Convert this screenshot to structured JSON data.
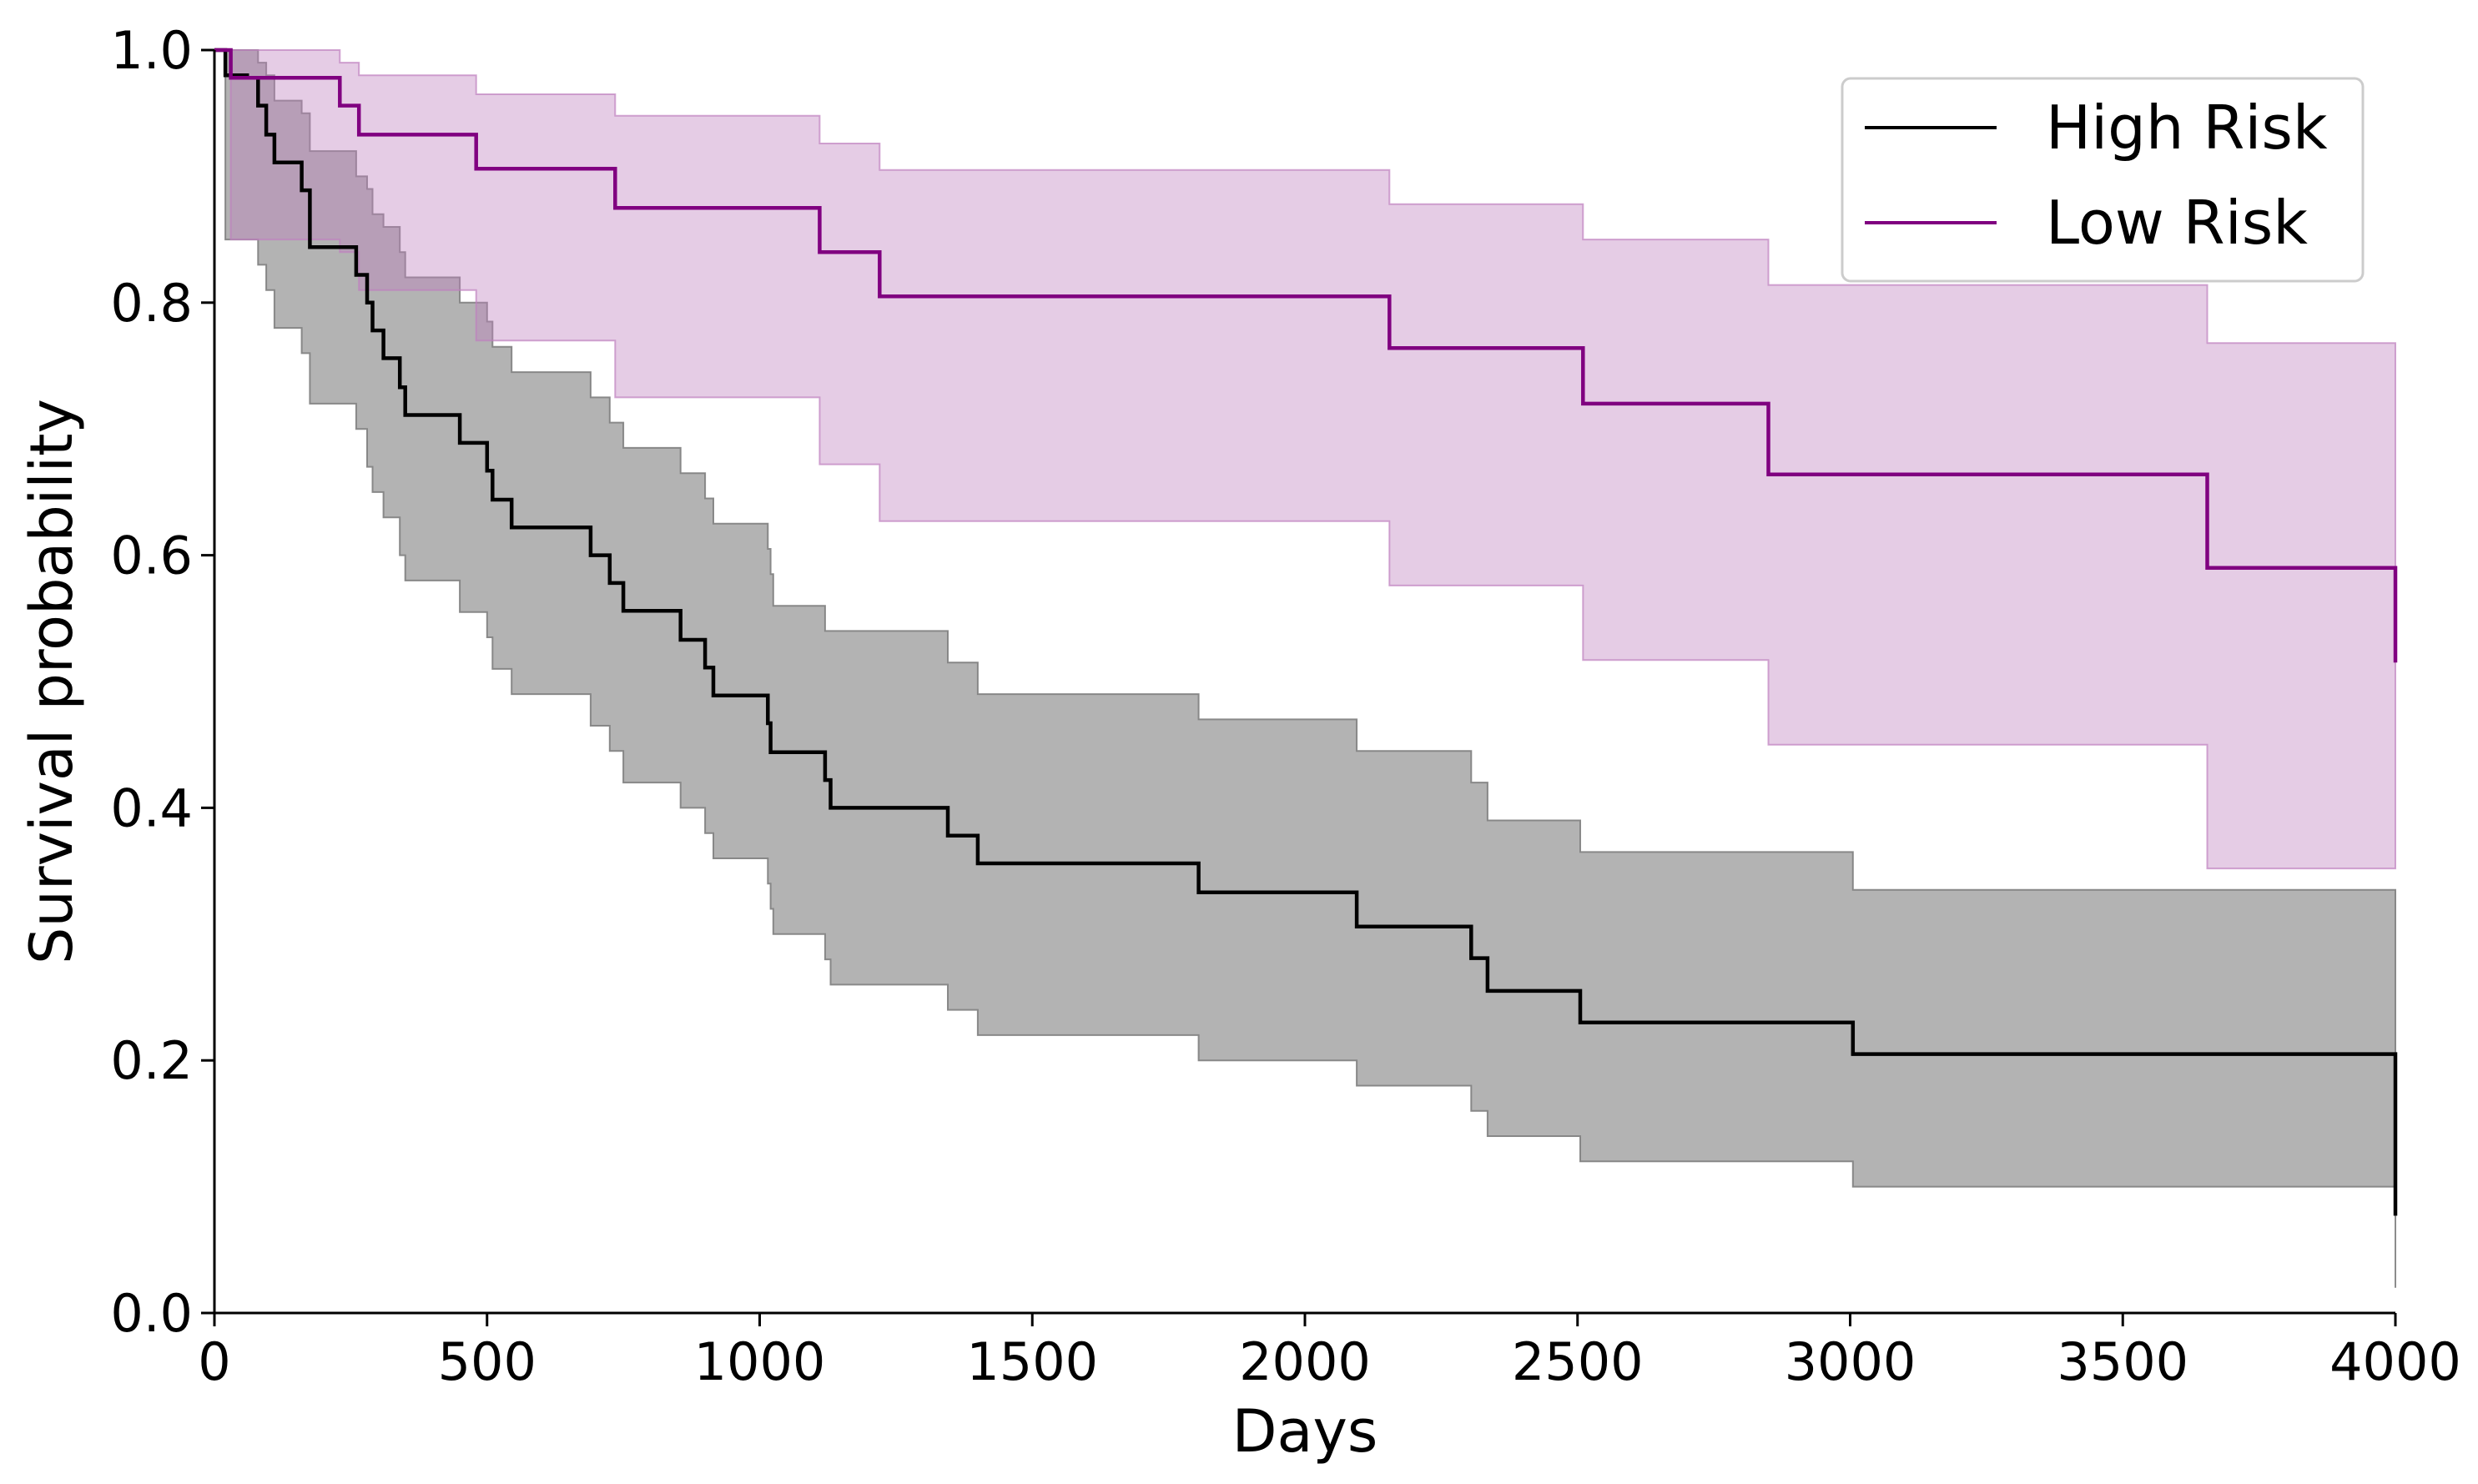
{
  "chart_data": {
    "type": "line",
    "subtype": "kaplan-meier step",
    "xlabel": "Days",
    "ylabel": "Survival probability",
    "xlim": [
      0,
      4000
    ],
    "ylim": [
      0,
      1.0
    ],
    "x_ticks": [
      0,
      500,
      1000,
      1500,
      2000,
      2500,
      3000,
      3500,
      4000
    ],
    "y_ticks": [
      0.0,
      0.2,
      0.4,
      0.6,
      0.8,
      1.0
    ],
    "x_tick_labels": [
      "0",
      "500",
      "1000",
      "1500",
      "2000",
      "2500",
      "3000",
      "3500",
      "4000"
    ],
    "y_tick_labels": [
      "0.0",
      "0.2",
      "0.4",
      "0.6",
      "0.8",
      "1.0"
    ],
    "grid": false,
    "legend_position": "top-right",
    "series": [
      {
        "name": "High Risk",
        "color": "#000000",
        "ci_color": "#808080",
        "ci_opacity": 0.6,
        "x": [
          0,
          20,
          60,
          80,
          95,
          110,
          160,
          175,
          260,
          280,
          290,
          310,
          340,
          350,
          450,
          500,
          510,
          545,
          690,
          725,
          750,
          855,
          900,
          915,
          1015,
          1020,
          1025,
          1120,
          1130,
          1345,
          1400,
          1805,
          2095,
          2305,
          2320,
          2335,
          2505,
          3005,
          4000
        ],
        "y": [
          1.0,
          0.98,
          0.978,
          0.956,
          0.933,
          0.911,
          0.889,
          0.844,
          0.822,
          0.8,
          0.778,
          0.756,
          0.733,
          0.711,
          0.689,
          0.667,
          0.644,
          0.622,
          0.6,
          0.578,
          0.556,
          0.533,
          0.511,
          0.489,
          0.467,
          0.444,
          0.444,
          0.422,
          0.4,
          0.378,
          0.356,
          0.333,
          0.306,
          0.281,
          0.281,
          0.255,
          0.23,
          0.205,
          0.077
        ],
        "ci_lower": [
          1.0,
          0.85,
          0.85,
          0.83,
          0.81,
          0.78,
          0.76,
          0.72,
          0.7,
          0.67,
          0.65,
          0.63,
          0.6,
          0.58,
          0.555,
          0.535,
          0.51,
          0.49,
          0.465,
          0.445,
          0.42,
          0.4,
          0.38,
          0.36,
          0.34,
          0.32,
          0.3,
          0.28,
          0.26,
          0.24,
          0.22,
          0.2,
          0.18,
          0.16,
          0.16,
          0.14,
          0.12,
          0.1,
          0.02
        ],
        "ci_upper": [
          1.0,
          1.0,
          1.0,
          0.99,
          0.98,
          0.96,
          0.95,
          0.92,
          0.9,
          0.89,
          0.87,
          0.86,
          0.84,
          0.82,
          0.8,
          0.785,
          0.765,
          0.745,
          0.725,
          0.705,
          0.685,
          0.665,
          0.645,
          0.625,
          0.605,
          0.585,
          0.56,
          0.54,
          0.54,
          0.515,
          0.49,
          0.47,
          0.445,
          0.42,
          0.42,
          0.39,
          0.365,
          0.335,
          0.27
        ]
      },
      {
        "name": "Low Risk",
        "color": "#800080",
        "ci_color": "#bf80bf",
        "ci_opacity": 0.4,
        "x": [
          0,
          30,
          230,
          265,
          480,
          735,
          1110,
          1220,
          2155,
          2510,
          2850,
          3655,
          4000
        ],
        "y": [
          1.0,
          0.978,
          0.956,
          0.933,
          0.906,
          0.875,
          0.84,
          0.805,
          0.764,
          0.72,
          0.664,
          0.59,
          0.515
        ],
        "ci_lower": [
          1.0,
          0.85,
          0.84,
          0.81,
          0.77,
          0.725,
          0.672,
          0.627,
          0.576,
          0.517,
          0.45,
          0.352,
          0.352
        ],
        "ci_upper": [
          1.0,
          1.0,
          0.99,
          0.98,
          0.965,
          0.948,
          0.926,
          0.905,
          0.878,
          0.85,
          0.814,
          0.768,
          0.768
        ]
      }
    ]
  }
}
